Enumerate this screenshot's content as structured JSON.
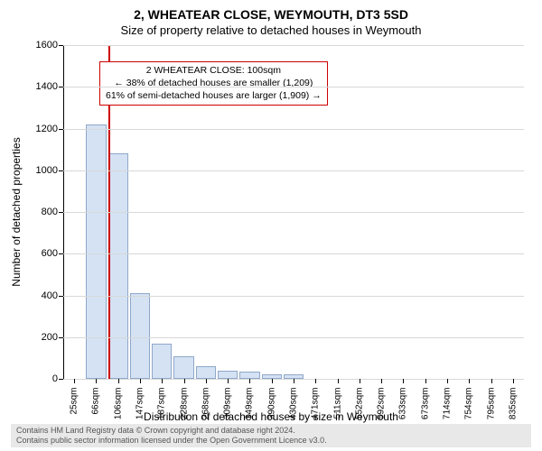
{
  "chart": {
    "type": "histogram",
    "title_main": "2, WHEATEAR CLOSE, WEYMOUTH, DT3 5SD",
    "title_sub": "Size of property relative to detached houses in Weymouth",
    "xlabel": "Distribution of detached houses by size in Weymouth",
    "ylabel": "Number of detached properties",
    "background_color": "#ffffff",
    "grid_color": "#d8d8d8",
    "axis_color": "#000000",
    "bar_fill": "#d4e2f4",
    "bar_stroke": "#8fa8c9",
    "ref_line_color": "#cc0000",
    "ylim": [
      0,
      1600
    ],
    "ytick_step": 200,
    "yticks": [
      0,
      200,
      400,
      600,
      800,
      1000,
      1200,
      1400,
      1600
    ],
    "x_categories": [
      "25sqm",
      "66sqm",
      "106sqm",
      "147sqm",
      "187sqm",
      "228sqm",
      "268sqm",
      "309sqm",
      "349sqm",
      "390sqm",
      "430sqm",
      "471sqm",
      "511sqm",
      "552sqm",
      "592sqm",
      "633sqm",
      "673sqm",
      "714sqm",
      "754sqm",
      "795sqm",
      "835sqm"
    ],
    "bar_values": [
      0,
      1220,
      1080,
      410,
      170,
      110,
      60,
      40,
      35,
      20,
      20,
      0,
      0,
      0,
      0,
      0,
      0,
      0,
      0,
      0,
      0
    ],
    "ref_line_category_index": 2,
    "callout": {
      "line1": "2 WHEATEAR CLOSE: 100sqm",
      "line2": "← 38% of detached houses are smaller (1,209)",
      "line3": "61% of semi-detached houses are larger (1,909) →"
    },
    "title_fontsize": 14,
    "subtitle_fontsize": 13,
    "axis_label_fontsize": 12,
    "tick_fontsize": 11,
    "x_tick_fontsize": 10,
    "callout_fontsize": 10.5
  },
  "footer": {
    "line1": "Contains HM Land Registry data © Crown copyright and database right 2024.",
    "line2": "Contains public sector information licensed under the Open Government Licence v3.0."
  }
}
